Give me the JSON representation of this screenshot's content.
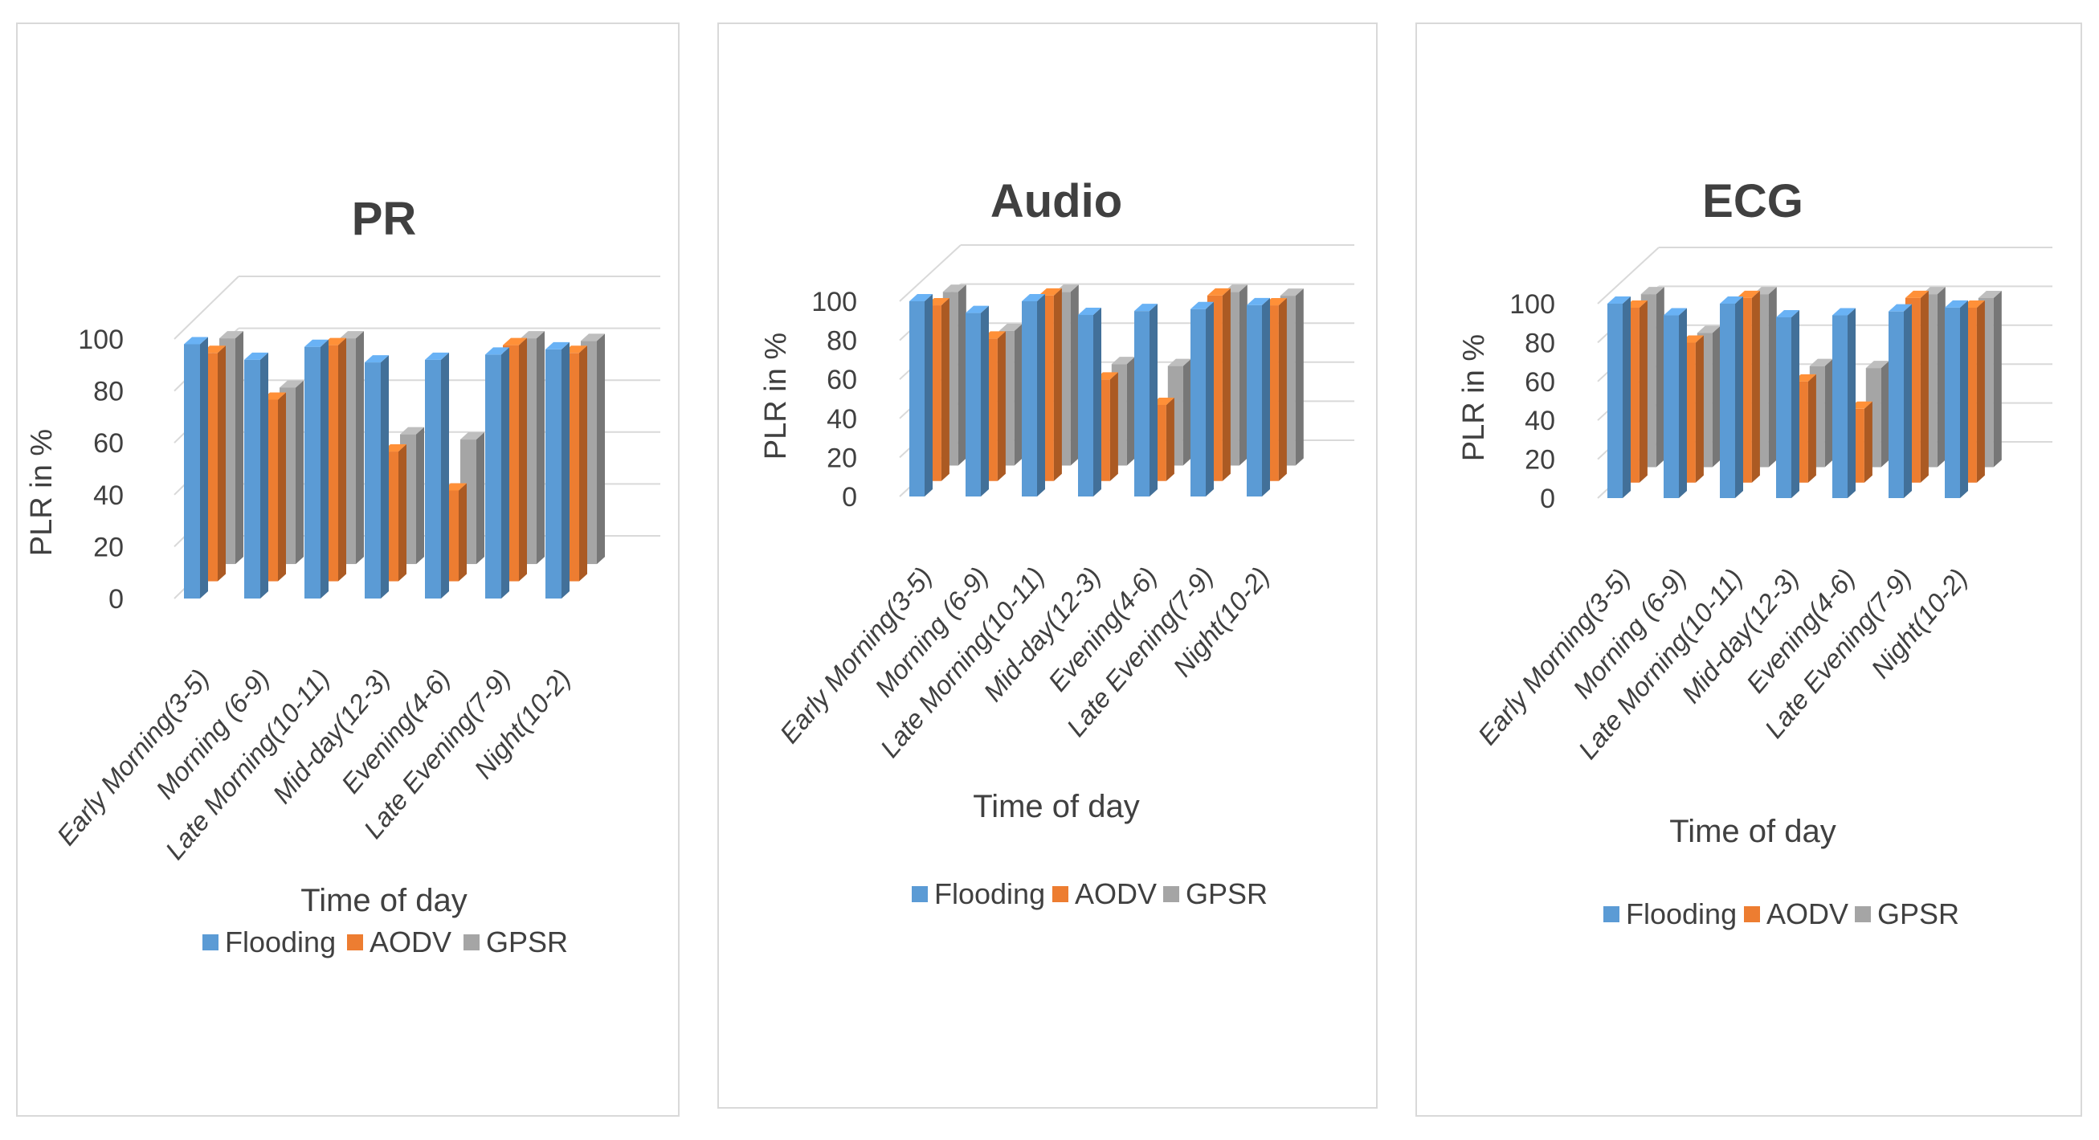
{
  "chart_data": [
    {
      "type": "bar",
      "title": "PR",
      "xlabel": "Time of day",
      "ylabel": "PLR in %",
      "ylim": [
        0,
        100
      ],
      "yticks": [
        "0",
        "20",
        "40",
        "60",
        "80",
        "100"
      ],
      "categories": [
        "Early Morning(3-5)",
        "Morning (6-9)",
        "Late Morning(10-11)",
        "Mid-day(12-3)",
        "Evening(4-6)",
        "Late Evening(7-9)",
        "Night(10-2)"
      ],
      "series": [
        {
          "name": "Flooding",
          "color": "#5b9bd5",
          "values": [
            98,
            92,
            97,
            91,
            92,
            94,
            96
          ]
        },
        {
          "name": "AODV",
          "color": "#ed7d31",
          "values": [
            88,
            70,
            91,
            50,
            35,
            91,
            88
          ]
        },
        {
          "name": "GPSR",
          "color": "#a5a5a5",
          "values": [
            87,
            68,
            87,
            50,
            48,
            87,
            86
          ]
        }
      ],
      "legend": "bottom"
    },
    {
      "type": "bar",
      "title": "Audio",
      "xlabel": "Time of day",
      "ylabel": "PLR in %",
      "ylim": [
        0,
        100
      ],
      "yticks": [
        "0",
        "20",
        "40",
        "60",
        "80",
        "100"
      ],
      "categories": [
        "Early Morning(3-5)",
        "Morning (6-9)",
        "Late Morning(10-11)",
        "Mid-day(12-3)",
        "Evening(4-6)",
        "Late Evening(7-9)",
        "Night(10-2)"
      ],
      "series": [
        {
          "name": "Flooding",
          "color": "#5b9bd5",
          "values": [
            100,
            94,
            100,
            93,
            95,
            96,
            98
          ]
        },
        {
          "name": "AODV",
          "color": "#ed7d31",
          "values": [
            90,
            73,
            95,
            52,
            39,
            95,
            90
          ]
        },
        {
          "name": "GPSR",
          "color": "#a5a5a5",
          "values": [
            89,
            69,
            89,
            52,
            51,
            89,
            87
          ]
        }
      ],
      "legend": "bottom"
    },
    {
      "type": "bar",
      "title": "ECG",
      "xlabel": "Time of day",
      "ylabel": "PLR in %",
      "ylim": [
        0,
        100
      ],
      "yticks": [
        "0",
        "20",
        "40",
        "60",
        "80",
        "100"
      ],
      "categories": [
        "Early Morning(3-5)",
        "Morning (6-9)",
        "Late Morning(10-11)",
        "Mid-day(12-3)",
        "Evening(4-6)",
        "Late Evening(7-9)",
        "Night(10-2)"
      ],
      "series": [
        {
          "name": "Flooding",
          "color": "#5b9bd5",
          "values": [
            100,
            94,
            100,
            93,
            94,
            96,
            98
          ]
        },
        {
          "name": "AODV",
          "color": "#ed7d31",
          "values": [
            90,
            72,
            95,
            52,
            38,
            95,
            90
          ]
        },
        {
          "name": "GPSR",
          "color": "#a5a5a5",
          "values": [
            89,
            69,
            89,
            52,
            51,
            89,
            87
          ]
        }
      ],
      "legend": "bottom"
    }
  ]
}
